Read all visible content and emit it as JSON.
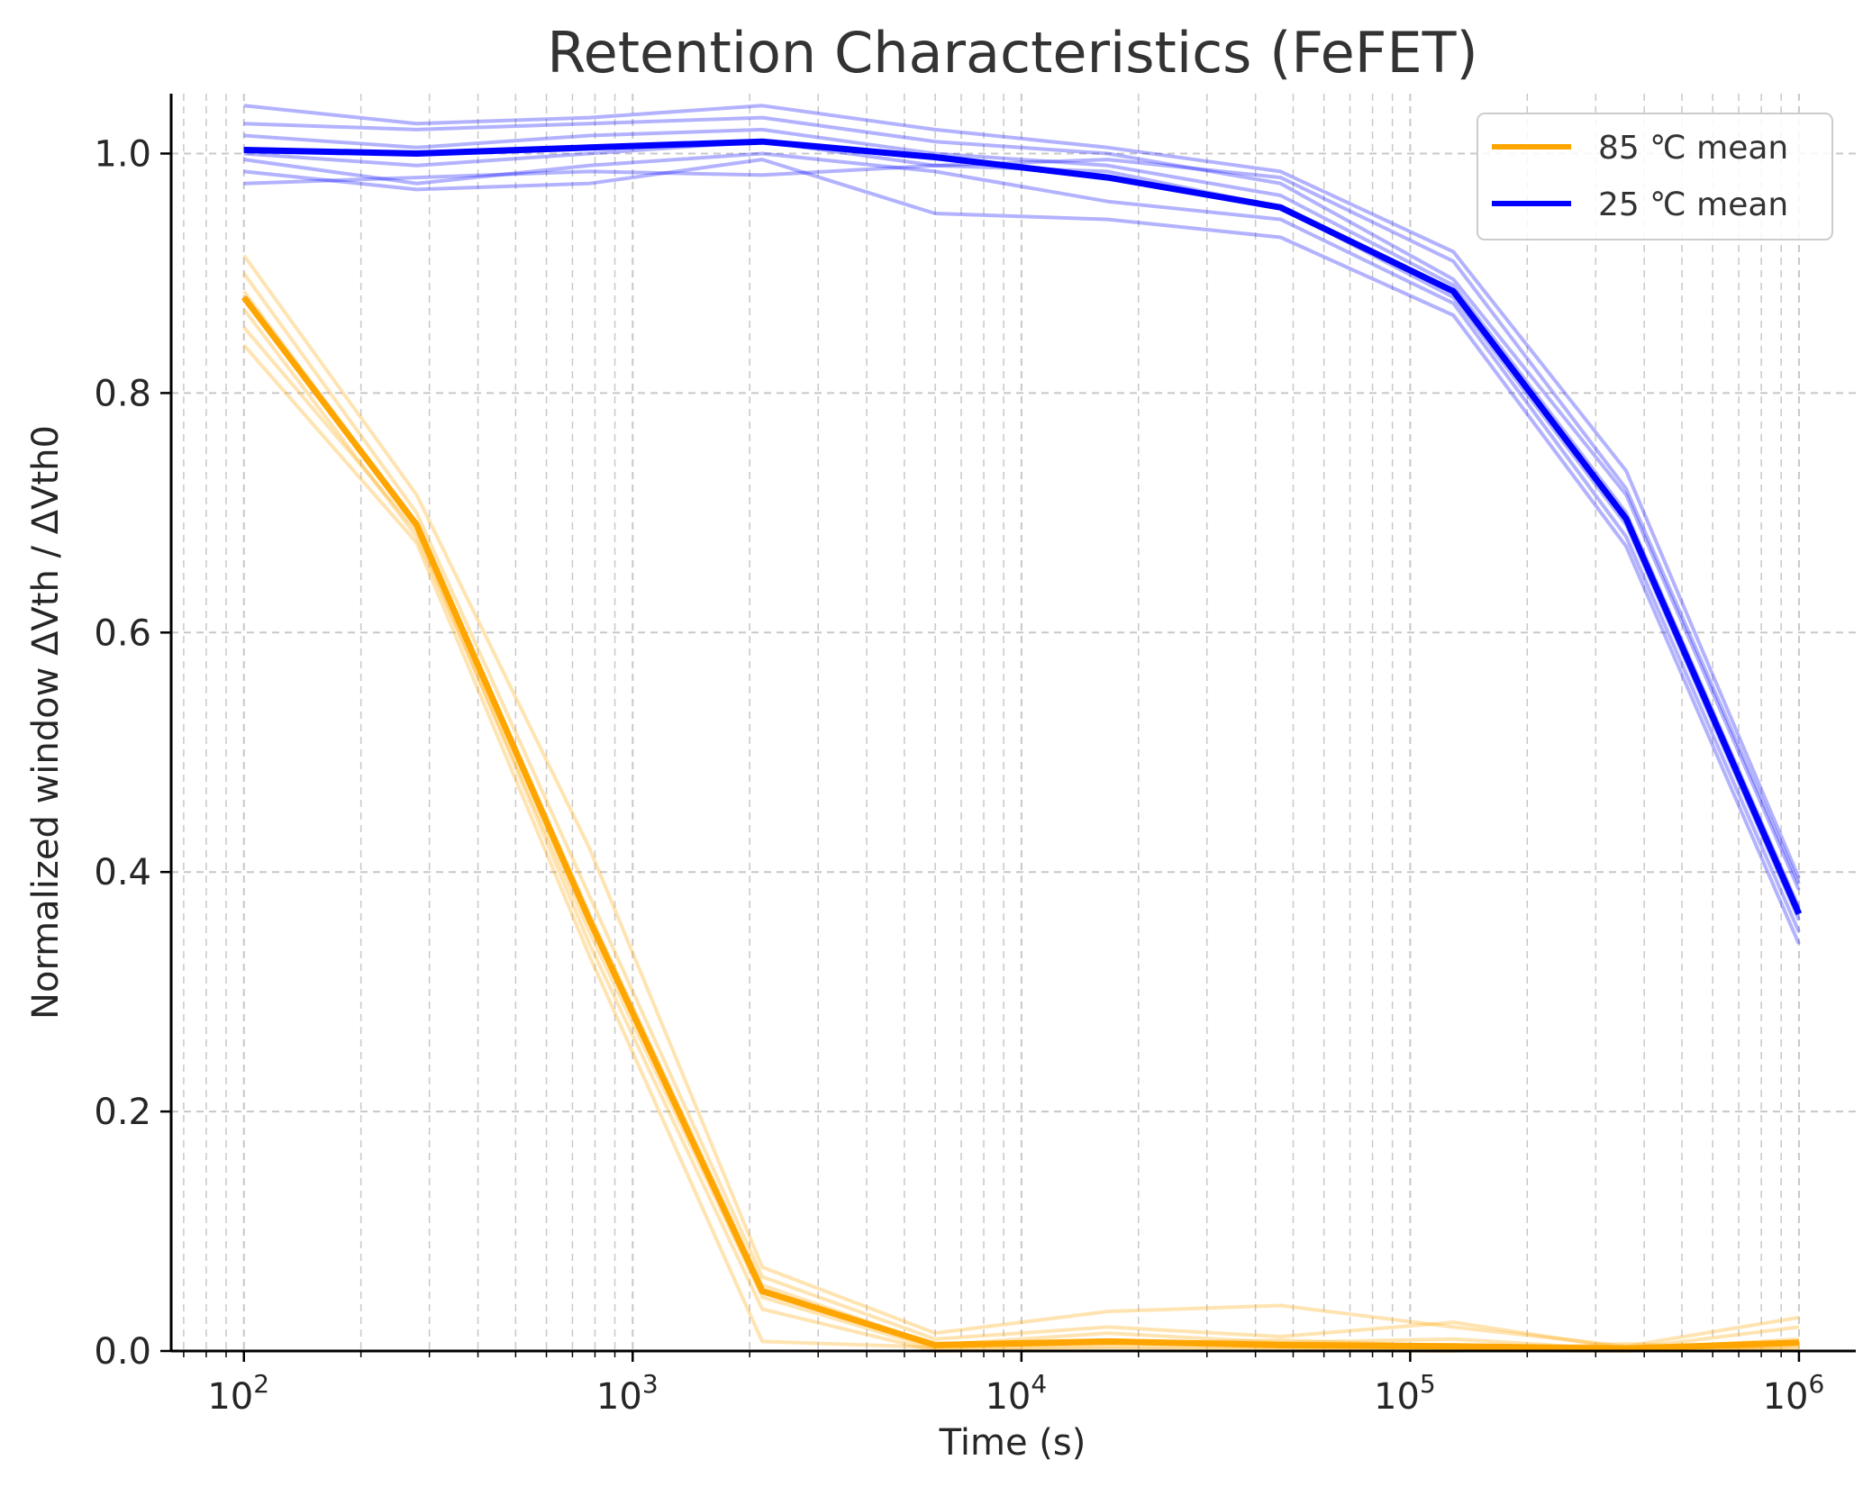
{
  "chart_data": {
    "type": "line",
    "title": "Retention Characteristics (FeFET)",
    "xlabel": "Time (s)",
    "ylabel": "Normalized window ΔVth / ΔVth0",
    "x_scale": "log",
    "xlim": [
      65,
      1400000
    ],
    "ylim": [
      0.0,
      1.05
    ],
    "grid": true,
    "legend_position": "top-right",
    "x_ticks": [
      {
        "value": 100,
        "base": "10",
        "exp": "2"
      },
      {
        "value": 1000,
        "base": "10",
        "exp": "3"
      },
      {
        "value": 10000,
        "base": "10",
        "exp": "4"
      },
      {
        "value": 100000,
        "base": "10",
        "exp": "5"
      },
      {
        "value": 1000000,
        "base": "10",
        "exp": "6"
      }
    ],
    "y_ticks": [
      "0.0",
      "0.2",
      "0.4",
      "0.6",
      "0.8",
      "1.0"
    ],
    "x": [
      100,
      278,
      774,
      2154,
      5995,
      16681,
      46416,
      129155,
      359381,
      1000000
    ],
    "series": [
      {
        "name": "85 ℃ mean",
        "color": "#FFA500",
        "kind": "mean",
        "values": [
          0.88,
          0.69,
          0.36,
          0.05,
          0.005,
          0.008,
          0.005,
          0.004,
          0.002,
          0.007
        ]
      },
      {
        "name": "25 ℃ mean",
        "color": "#0000FF",
        "kind": "mean",
        "values": [
          1.003,
          1.0,
          1.005,
          1.01,
          0.997,
          0.98,
          0.955,
          0.885,
          0.695,
          0.365
        ]
      }
    ],
    "individual_runs": [
      {
        "group": "85 ℃",
        "color": "#FFA500",
        "values": [
          0.915,
          0.715,
          0.42,
          0.07,
          0.015,
          0.033,
          0.038,
          0.02,
          0.004,
          0.028
        ]
      },
      {
        "group": "85 ℃",
        "color": "#FFA500",
        "values": [
          0.9,
          0.7,
          0.38,
          0.062,
          0.01,
          0.02,
          0.012,
          0.024,
          0.002,
          0.02
        ]
      },
      {
        "group": "85 ℃",
        "color": "#FFA500",
        "values": [
          0.885,
          0.69,
          0.365,
          0.055,
          0.005,
          0.015,
          0.007,
          0.01,
          0.001,
          0.01
        ]
      },
      {
        "group": "85 ℃",
        "color": "#FFA500",
        "values": [
          0.87,
          0.68,
          0.35,
          0.045,
          0.002,
          0.004,
          0.003,
          0.001,
          0.0,
          0.004
        ]
      },
      {
        "group": "85 ℃",
        "color": "#FFA500",
        "values": [
          0.855,
          0.685,
          0.34,
          0.035,
          0.0,
          0.002,
          0.001,
          0.0,
          0.006,
          0.0
        ]
      },
      {
        "group": "85 ℃",
        "color": "#FFA500",
        "values": [
          0.84,
          0.675,
          0.33,
          0.008,
          0.003,
          0.006,
          0.009,
          0.004,
          0.003,
          0.002
        ]
      },
      {
        "group": "25 ℃",
        "color": "#0000FF",
        "values": [
          1.04,
          1.025,
          1.03,
          1.04,
          1.02,
          1.005,
          0.985,
          0.918,
          0.735,
          0.395
        ]
      },
      {
        "group": "25 ℃",
        "color": "#0000FF",
        "values": [
          1.025,
          1.02,
          1.025,
          1.03,
          1.01,
          1.0,
          0.975,
          0.895,
          0.715,
          0.385
        ]
      },
      {
        "group": "25 ℃",
        "color": "#0000FF",
        "values": [
          1.015,
          1.005,
          1.015,
          1.02,
          1.0,
          0.99,
          0.965,
          0.89,
          0.7,
          0.37
        ]
      },
      {
        "group": "25 ℃",
        "color": "#0000FF",
        "values": [
          1.0,
          0.99,
          1.0,
          1.01,
          0.99,
          0.985,
          0.955,
          0.88,
          0.69,
          0.36
        ]
      },
      {
        "group": "25 ℃",
        "color": "#0000FF",
        "values": [
          0.995,
          0.975,
          0.99,
          1.0,
          0.985,
          0.96,
          0.945,
          0.875,
          0.68,
          0.35
        ]
      },
      {
        "group": "25 ℃",
        "color": "#0000FF",
        "values": [
          0.985,
          0.97,
          0.975,
          0.995,
          0.95,
          0.945,
          0.93,
          0.865,
          0.672,
          0.34
        ]
      },
      {
        "group": "25 ℃",
        "color": "#0000FF",
        "values": [
          0.975,
          0.98,
          0.985,
          0.982,
          0.99,
          0.995,
          0.98,
          0.91,
          0.72,
          0.39
        ]
      }
    ]
  }
}
